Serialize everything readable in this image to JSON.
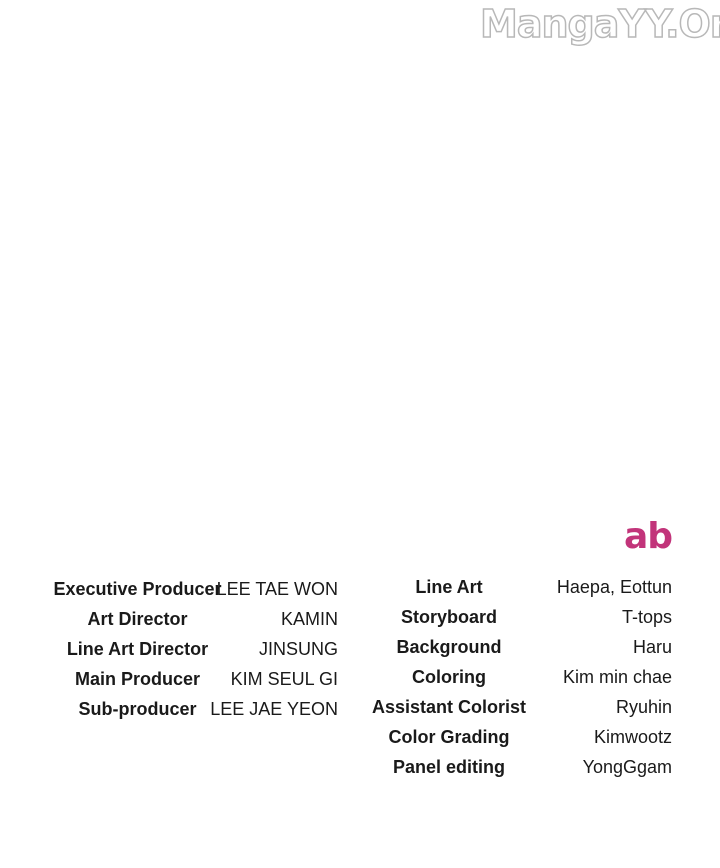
{
  "watermark": "MangaYY.Org",
  "logo": {
    "text": "ab",
    "color": "#c2347a"
  },
  "credits_left": [
    {
      "role": "Executive Producer",
      "name": "LEE TAE WON"
    },
    {
      "role": "Art Director",
      "name": "KAMIN"
    },
    {
      "role": "Line Art Director",
      "name": "JINSUNG"
    },
    {
      "role": "Main Producer",
      "name": "KIM SEUL GI"
    },
    {
      "role": "Sub-producer",
      "name": "LEE JAE YEON"
    }
  ],
  "credits_right": [
    {
      "role": "Line Art",
      "name": "Haepa, Eottun"
    },
    {
      "role": "Storyboard",
      "name": "T-tops"
    },
    {
      "role": "Background",
      "name": "Haru"
    },
    {
      "role": "Coloring",
      "name": "Kim min chae"
    },
    {
      "role": "Assistant Colorist",
      "name": "Ryuhin"
    },
    {
      "role": "Color Grading",
      "name": "Kimwootz"
    },
    {
      "role": "Panel editing",
      "name": "YongGgam"
    }
  ]
}
